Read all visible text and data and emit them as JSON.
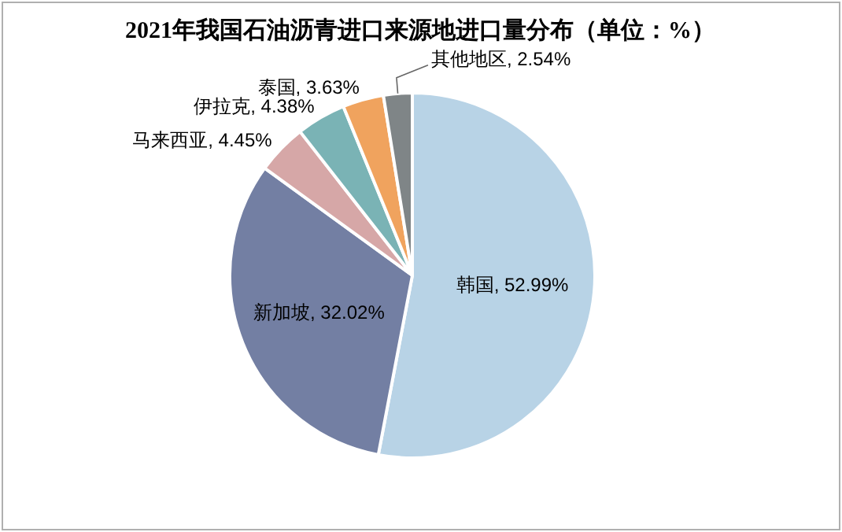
{
  "chart_data": {
    "type": "pie",
    "title": "2021年我国石油沥青进口来源地进口量分布（单位：%）",
    "categories": [
      "韩国",
      "新加坡",
      "马来西亚",
      "伊拉克",
      "泰国",
      "其他地区"
    ],
    "values": [
      52.99,
      32.02,
      4.45,
      4.38,
      3.63,
      2.54
    ],
    "value_labels": [
      "52.99%",
      "32.02%",
      "4.45%",
      "4.38%",
      "3.63%",
      "2.54%"
    ],
    "colors": [
      "#b8d3e6",
      "#737fa3",
      "#d6a7a7",
      "#7ab3b5",
      "#f0a35e",
      "#7f8587"
    ]
  }
}
